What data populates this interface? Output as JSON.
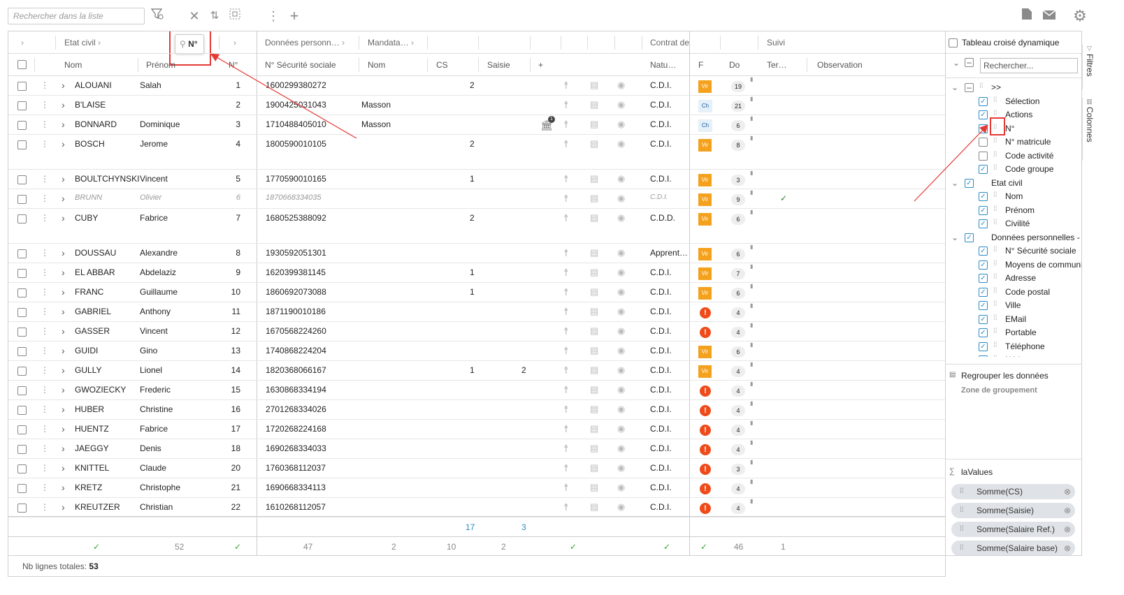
{
  "toolbar": {
    "search_placeholder": "Rechercher dans la liste",
    "icons": [
      "filter-icon",
      "close-icon",
      "sort-icon",
      "select-icon",
      "more-icon",
      "add-icon",
      "document-icon",
      "mail-icon",
      "gear-icon"
    ]
  },
  "group_headers": {
    "etat_civil": "Etat civil",
    "pinned_label": "N°",
    "donnees": "Données personn…",
    "mandata": "Mandata…",
    "contrat": "Contrat de",
    "suivi": "Suivi"
  },
  "column_headers": {
    "nom": "Nom",
    "prenom": "Prénom",
    "num": "N°",
    "secu": "N° Sécurité sociale",
    "nom2": "Nom",
    "cs": "CS",
    "saisie": "Saisie",
    "plus": "+",
    "nature": "Natu…",
    "f": "F",
    "do": "Do",
    "ter": "Ter…",
    "observation": "Observation"
  },
  "rows": [
    {
      "nom": "ALOUANI",
      "prenom": "Salah",
      "num": "1",
      "secu": "1600299380272",
      "nom2": "",
      "cs": "2",
      "saisie": "",
      "nature": "C.D.I.",
      "f": "vir",
      "do": "19",
      "suivi": ""
    },
    {
      "nom": "B'LAISE",
      "prenom": "",
      "num": "2",
      "secu": "1900425031043",
      "nom2": "Masson",
      "cs": "",
      "saisie": "",
      "nature": "C.D.I.",
      "f": "ch",
      "do": "21",
      "suivi": ""
    },
    {
      "nom": "BONNARD",
      "prenom": "Dominique",
      "num": "3",
      "secu": "1710488405010",
      "nom2": "Masson",
      "cs": "",
      "saisie": "",
      "nature": "C.D.I.",
      "f": "ch",
      "do": "6",
      "suivi": "",
      "bank": "1"
    },
    {
      "nom": "BOSCH",
      "prenom": "Jerome",
      "num": "4",
      "secu": "1800590010105",
      "nom2": "",
      "cs": "2",
      "saisie": "",
      "nature": "C.D.I.",
      "f": "vir",
      "do": "8",
      "suivi": ""
    },
    {
      "nom": "BOULTCHYNSKI",
      "prenom": "Vincent",
      "num": "5",
      "secu": "1770590010165",
      "nom2": "",
      "cs": "1",
      "saisie": "",
      "nature": "C.D.I.",
      "f": "vir",
      "do": "3",
      "suivi": ""
    },
    {
      "nom": "BRUNN",
      "prenom": "Olivier",
      "num": "6",
      "secu": "1870668334035",
      "nom2": "",
      "cs": "",
      "saisie": "",
      "nature": "C.D.I.",
      "f": "vir",
      "do": "9",
      "suivi": "✓",
      "grey": true
    },
    {
      "nom": "CUBY",
      "prenom": "Fabrice",
      "num": "7",
      "secu": "1680525388092",
      "nom2": "",
      "cs": "2",
      "saisie": "",
      "nature": "C.D.D.",
      "f": "vir",
      "do": "6",
      "suivi": ""
    },
    {
      "nom": "DOUSSAU",
      "prenom": "Alexandre",
      "num": "8",
      "secu": "1930592051301",
      "nom2": "",
      "cs": "",
      "saisie": "",
      "nature": "Apprent…",
      "f": "vir",
      "do": "6",
      "suivi": ""
    },
    {
      "nom": "EL ABBAR",
      "prenom": "Abdelaziz",
      "num": "9",
      "secu": "1620399381145",
      "nom2": "",
      "cs": "1",
      "saisie": "",
      "nature": "C.D.I.",
      "f": "vir",
      "do": "7",
      "suivi": ""
    },
    {
      "nom": "FRANC",
      "prenom": "Guillaume",
      "num": "10",
      "secu": "1860692073088",
      "nom2": "",
      "cs": "1",
      "saisie": "",
      "nature": "C.D.I.",
      "f": "vir",
      "do": "6",
      "suivi": ""
    },
    {
      "nom": "GABRIEL",
      "prenom": "Anthony",
      "num": "11",
      "secu": "1871190010186",
      "nom2": "",
      "cs": "",
      "saisie": "",
      "nature": "C.D.I.",
      "f": "excl",
      "do": "4",
      "suivi": ""
    },
    {
      "nom": "GASSER",
      "prenom": "Vincent",
      "num": "12",
      "secu": "1670568224260",
      "nom2": "",
      "cs": "",
      "saisie": "",
      "nature": "C.D.I.",
      "f": "excl",
      "do": "4",
      "suivi": ""
    },
    {
      "nom": "GUIDI",
      "prenom": "Gino",
      "num": "13",
      "secu": "1740868224204",
      "nom2": "",
      "cs": "",
      "saisie": "",
      "nature": "C.D.I.",
      "f": "vir",
      "do": "6",
      "suivi": ""
    },
    {
      "nom": "GULLY",
      "prenom": "Lionel",
      "num": "14",
      "secu": "1820368066167",
      "nom2": "",
      "cs": "1",
      "saisie": "2",
      "nature": "C.D.I.",
      "f": "vir",
      "do": "4",
      "suivi": ""
    },
    {
      "nom": "GWOZIECKY",
      "prenom": "Frederic",
      "num": "15",
      "secu": "1630868334194",
      "nom2": "",
      "cs": "",
      "saisie": "",
      "nature": "C.D.I.",
      "f": "excl",
      "do": "4",
      "suivi": ""
    },
    {
      "nom": "HUBER",
      "prenom": "Christine",
      "num": "16",
      "secu": "2701268334026",
      "nom2": "",
      "cs": "",
      "saisie": "",
      "nature": "C.D.I.",
      "f": "excl",
      "do": "4",
      "suivi": ""
    },
    {
      "nom": "HUENTZ",
      "prenom": "Fabrice",
      "num": "17",
      "secu": "1720268224168",
      "nom2": "",
      "cs": "",
      "saisie": "",
      "nature": "C.D.I.",
      "f": "excl",
      "do": "4",
      "suivi": ""
    },
    {
      "nom": "JAEGGY",
      "prenom": "Denis",
      "num": "18",
      "secu": "1690268334033",
      "nom2": "",
      "cs": "",
      "saisie": "",
      "nature": "C.D.I.",
      "f": "excl",
      "do": "4",
      "suivi": ""
    },
    {
      "nom": "KNITTEL",
      "prenom": "Claude",
      "num": "20",
      "secu": "1760368112037",
      "nom2": "",
      "cs": "",
      "saisie": "",
      "nature": "C.D.I.",
      "f": "excl",
      "do": "3",
      "suivi": ""
    },
    {
      "nom": "KRETZ",
      "prenom": "Christophe",
      "num": "21",
      "secu": "1690668334113",
      "nom2": "",
      "cs": "",
      "saisie": "",
      "nature": "C.D.I.",
      "f": "excl",
      "do": "4",
      "suivi": ""
    },
    {
      "nom": "KREUTZER",
      "prenom": "Christian",
      "num": "22",
      "secu": "1610268112057",
      "nom2": "",
      "cs": "",
      "saisie": "",
      "nature": "C.D.I.",
      "f": "excl",
      "do": "4",
      "suivi": ""
    }
  ],
  "totals_row": {
    "cs": "17",
    "saisie": "3"
  },
  "count_row": {
    "prenom": "52",
    "secu": "47",
    "nom2": "2",
    "cs": "10",
    "saisie": "2",
    "do": "46",
    "ter": "1"
  },
  "status": {
    "label": "Nb lignes totales:",
    "value": "53"
  },
  "sidebar": {
    "pivot_label": "Tableau croisé dynamique",
    "search_placeholder": "Rechercher...",
    "tree": [
      {
        "label": ">>",
        "level": 0,
        "state": "partial"
      },
      {
        "label": "Sélection",
        "level": 1,
        "state": "checked"
      },
      {
        "label": "Actions",
        "level": 1,
        "state": "checked"
      },
      {
        "label": "N°",
        "level": 1,
        "state": "checked"
      },
      {
        "label": "N° matricule",
        "level": 1,
        "state": "unchecked"
      },
      {
        "label": "Code activité",
        "level": 1,
        "state": "unchecked"
      },
      {
        "label": "Code groupe",
        "level": 1,
        "state": "checked"
      },
      {
        "label": "Etat civil",
        "level": 0,
        "state": "checked"
      },
      {
        "label": "Nom",
        "level": 1,
        "state": "checked"
      },
      {
        "label": "Prénom",
        "level": 1,
        "state": "checked"
      },
      {
        "label": "Civilité",
        "level": 1,
        "state": "checked"
      },
      {
        "label": "Données personnelles - F",
        "level": 0,
        "state": "checked"
      },
      {
        "label": "N° Sécurité sociale",
        "level": 1,
        "state": "checked"
      },
      {
        "label": "Moyens de communi",
        "level": 1,
        "state": "checked"
      },
      {
        "label": "Adresse",
        "level": 1,
        "state": "checked"
      },
      {
        "label": "Code postal",
        "level": 1,
        "state": "checked"
      },
      {
        "label": "Ville",
        "level": 1,
        "state": "checked"
      },
      {
        "label": "EMail",
        "level": 1,
        "state": "checked"
      },
      {
        "label": "Portable",
        "level": 1,
        "state": "checked"
      },
      {
        "label": "Téléphone",
        "level": 1,
        "state": "checked"
      },
      {
        "label": "Né le",
        "level": 1,
        "state": "checked"
      }
    ],
    "group_title": "Regrouper les données",
    "group_zone": "Zone de groupement",
    "values_title": "laValues",
    "values": [
      "Somme(CS)",
      "Somme(Saisie)",
      "Somme(Salaire Ref.)",
      "Somme(Salaire base)"
    ],
    "vtab_filters": "Filtres",
    "vtab_columns": "Colonnes"
  },
  "colors": {
    "accent": "#2a8bc4",
    "highlight": "#e53935",
    "vir": "#f4a21e",
    "error": "#ef4b1a"
  }
}
